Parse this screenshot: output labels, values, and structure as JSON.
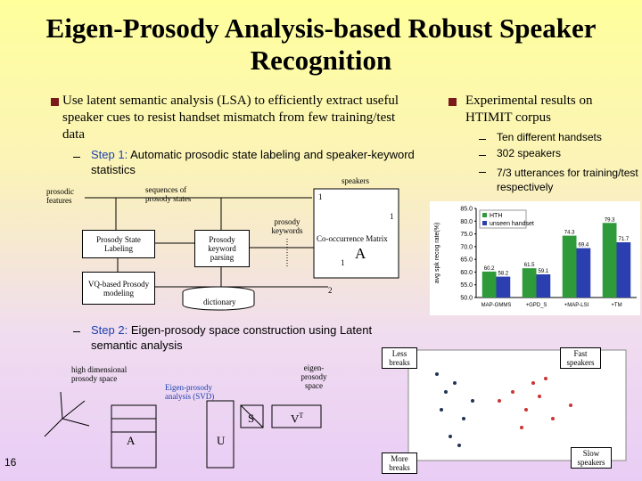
{
  "title": "Eigen-Prosody Analysis-based Robust Speaker Recognition",
  "left_bullet": {
    "text": "Use latent semantic analysis (LSA) to efficiently extract useful speaker cues to resist handset mismatch from few training/test data",
    "step1": {
      "label": "Step 1:",
      "text": " Automatic prosodic state labeling and speaker-keyword statistics"
    },
    "step2": {
      "label": "Step 2:",
      "text": " Eigen-prosody space construction using Latent semantic analysis"
    }
  },
  "right_bullet": {
    "text": "Experimental results on HTIMIT corpus",
    "items": [
      "Ten different handsets",
      "302 speakers",
      "7/3 utterances for training/test respectively"
    ]
  },
  "diagram1": {
    "prosodic_features": "prosodic features",
    "sequences": "sequences of prosody states",
    "speakers": "speakers",
    "state_labeling": "Prosody State Labeling",
    "keyword_parsing": "Prosody keyword parsing",
    "prosody_keywords": "prosody keywords",
    "matrix": "Co-occurrence Matrix",
    "matrix_symbol": "A",
    "vq_modeling": "VQ-based Prosody modeling",
    "dictionary": "dictionary",
    "index_labels": [
      "1",
      "1",
      "1",
      "2"
    ]
  },
  "diagram2": {
    "high_dim": "high dimensional prosody space",
    "svd": "Eigen-prosody analysis (SVD)",
    "eigen_space": "eigen-prosody space",
    "a": "A",
    "u": "U",
    "s": "S",
    "v": "V",
    "t": "T",
    "less_breaks": "Less breaks",
    "fast_speakers": "Fast speakers",
    "more_breaks": "More breaks",
    "slow_speakers": "Slow speakers"
  },
  "page_number": "16",
  "chart_data": {
    "type": "bar",
    "ylabel": "avg spk recog rate(%)",
    "categories": [
      "MAP-GMMS",
      "+GPD_S",
      "+MAP-LSI",
      "+TM"
    ],
    "series": [
      {
        "name": "HTH",
        "color": "#2e9a3a",
        "values": [
          60.2,
          61.5,
          74.3,
          79.3
        ]
      },
      {
        "name": "unseen handset",
        "color": "#2b3fb0",
        "values": [
          58.2,
          59.1,
          69.4,
          71.7
        ]
      }
    ],
    "ylim": [
      50,
      85
    ],
    "yticks": [
      {
        "value": 50,
        "label": "50.0"
      },
      {
        "value": 55,
        "label": "55.0"
      },
      {
        "value": 60,
        "label": "60.0"
      },
      {
        "value": 65,
        "label": "65.0"
      },
      {
        "value": 70,
        "label": "70.0"
      },
      {
        "value": 75,
        "label": "75.0"
      },
      {
        "value": 80,
        "label": "80.0"
      },
      {
        "value": 85,
        "label": "85.0"
      }
    ],
    "legend": "upper left"
  }
}
